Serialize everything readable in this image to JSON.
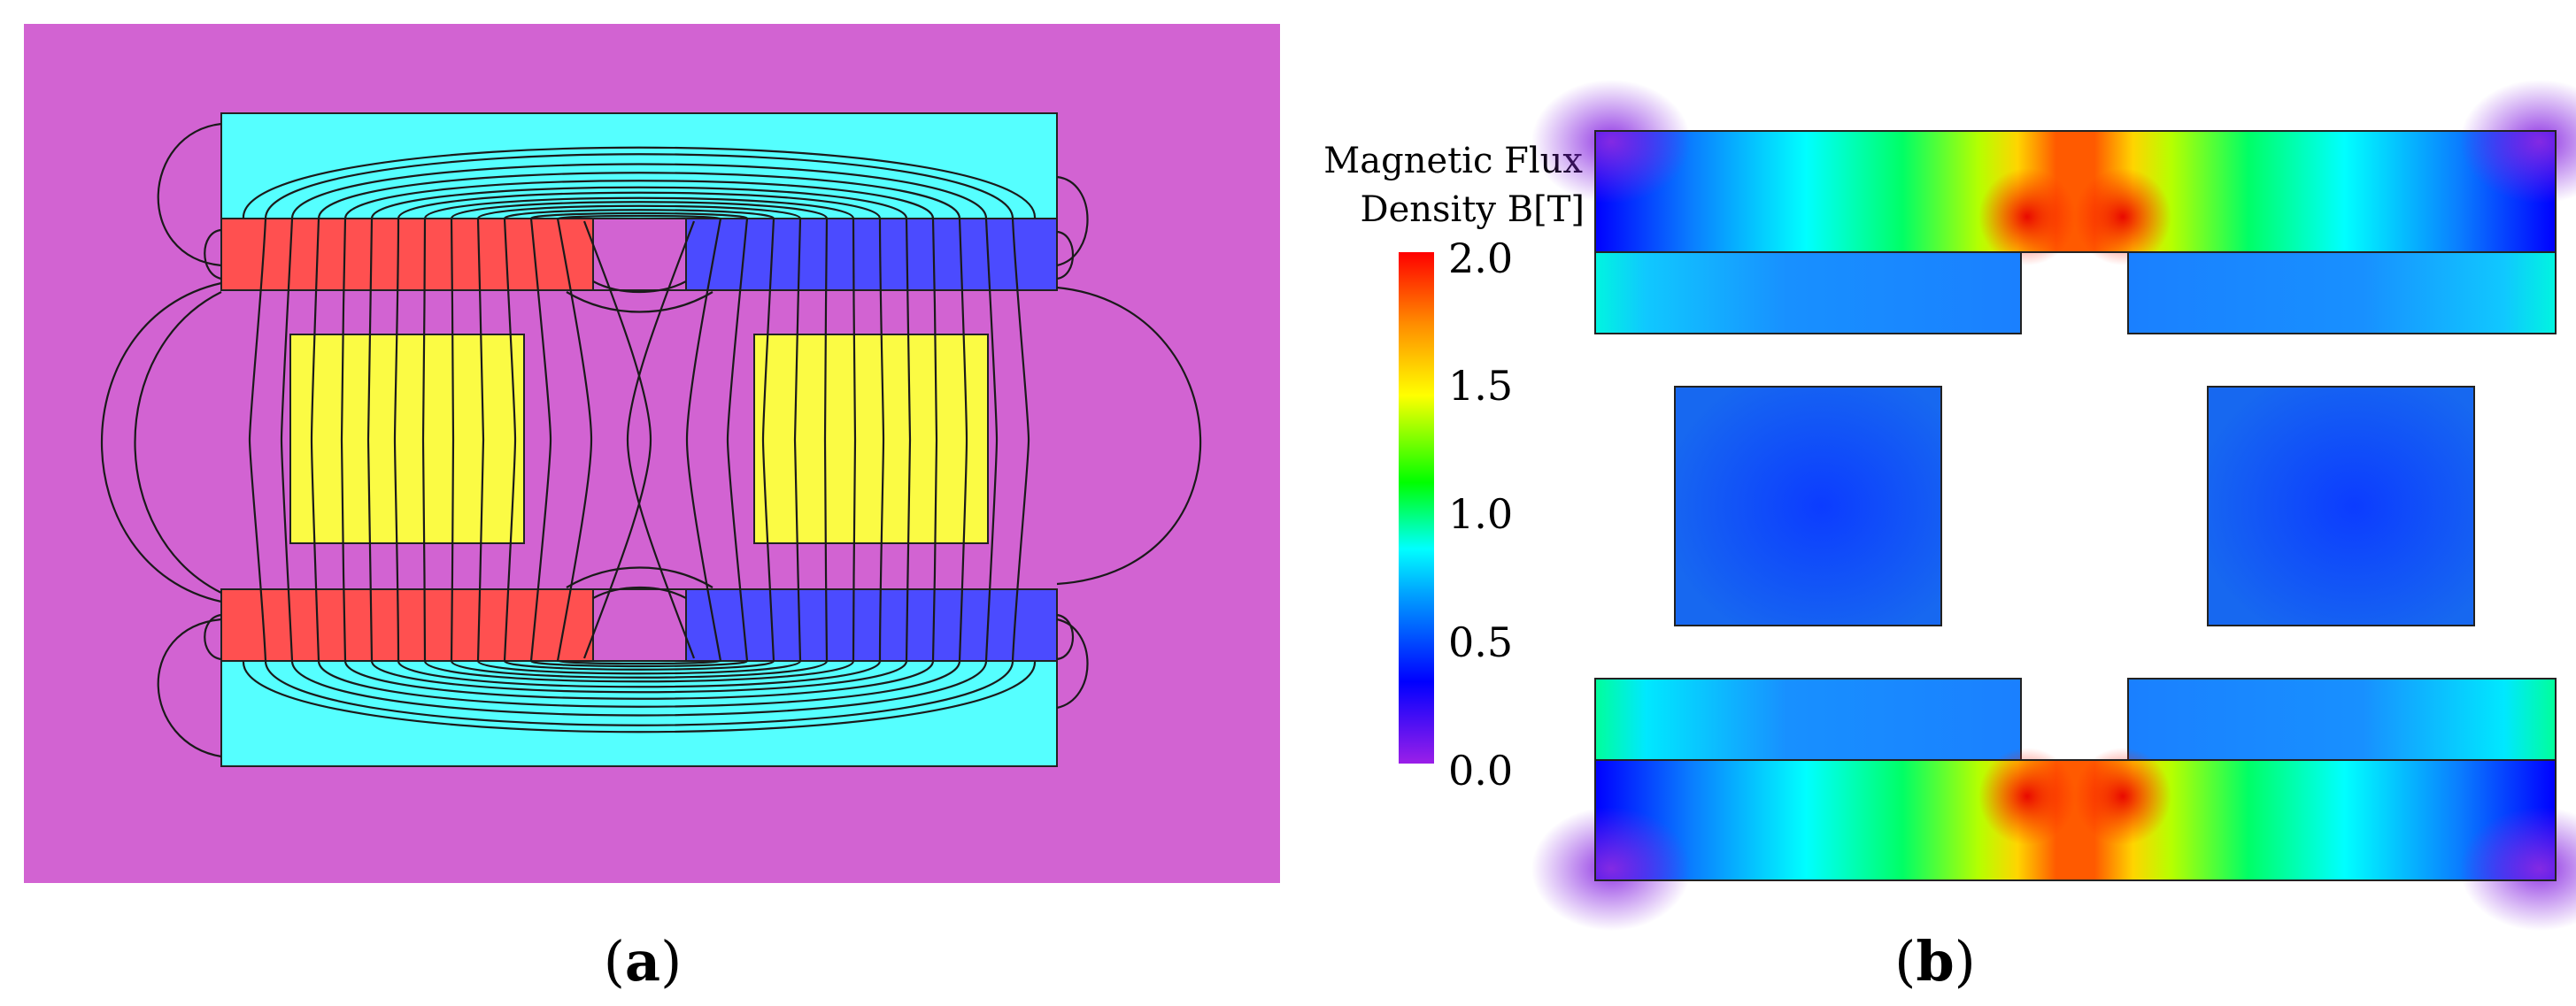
{
  "panels": {
    "a": {
      "label_open": "(",
      "label_letter": "a",
      "label_close": ")"
    },
    "b": {
      "label_open": "(",
      "label_letter": "b",
      "label_close": ")"
    }
  },
  "legend": {
    "title_line1": "Magnetic Flux",
    "title_line2": "Density  B[T]",
    "ticks": [
      "2.0",
      "1.5",
      "1.0",
      "0.5",
      "0.0"
    ],
    "min": 0.0,
    "max": 2.0
  },
  "colors": {
    "air": "#d263d2",
    "steel": "#55ffff",
    "magnet_north": "#ff5050",
    "magnet_south": "#4b4bff",
    "coil": "#fbfb44",
    "colormap": [
      "#9b1fe8",
      "#0000ff",
      "#00ffff",
      "#00ff00",
      "#ffff00",
      "#ff8c00",
      "#ff0000"
    ]
  }
}
